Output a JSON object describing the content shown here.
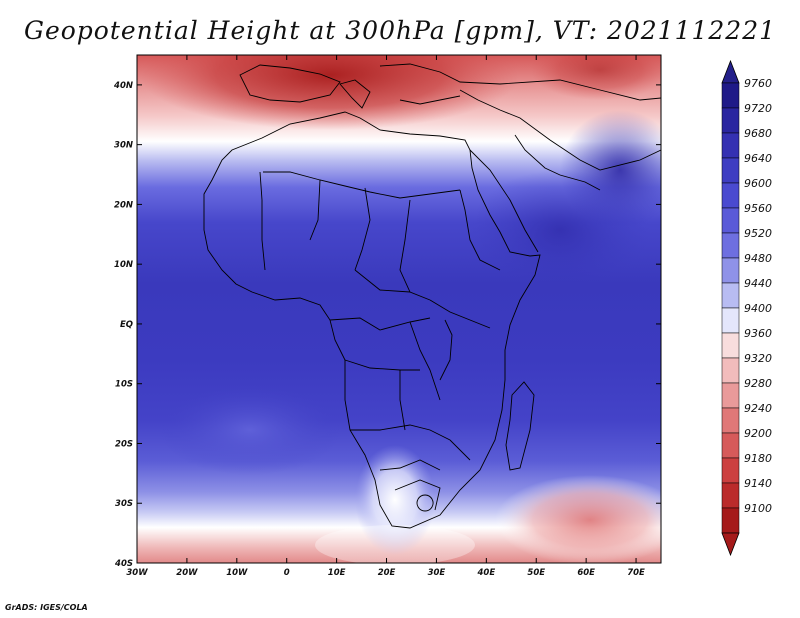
{
  "title": "Geopotential Height at 300hPa [gpm], VT: 2021112221",
  "footer": "GrADS: IGES/COLA",
  "map": {
    "variable": "Geopotential Height",
    "level": "300hPa",
    "units": "gpm",
    "valid_time": "2021112221",
    "lon_range": [
      -30,
      75
    ],
    "lat_range": [
      -40,
      45
    ],
    "lon_ticks": [
      "30W",
      "20W",
      "10W",
      "0",
      "10E",
      "20E",
      "30E",
      "40E",
      "50E",
      "60E",
      "70E"
    ],
    "lat_ticks": [
      "40N",
      "30N",
      "20N",
      "10N",
      "EQ",
      "10S",
      "20S",
      "30S",
      "40S"
    ]
  },
  "colorbar": {
    "labels": [
      "9760",
      "9720",
      "9680",
      "9640",
      "9600",
      "9560",
      "9520",
      "9480",
      "9440",
      "9400",
      "9360",
      "9320",
      "9280",
      "9240",
      "9200",
      "9180",
      "9140",
      "9100"
    ],
    "colors": [
      "#1f1a88",
      "#2a25a0",
      "#3430b2",
      "#3e3dc2",
      "#4a4ad0",
      "#5a5ad8",
      "#6e6fe0",
      "#8f92e8",
      "#b8bcf2",
      "#e4e6fb",
      "#f8dddd",
      "#f2bcbc",
      "#e99a9a",
      "#e07878",
      "#d65a5a",
      "#cc4040",
      "#bb2b2b",
      "#a51a1a"
    ],
    "top_color": "#24208a",
    "bottom_color": "#a51a1a"
  }
}
